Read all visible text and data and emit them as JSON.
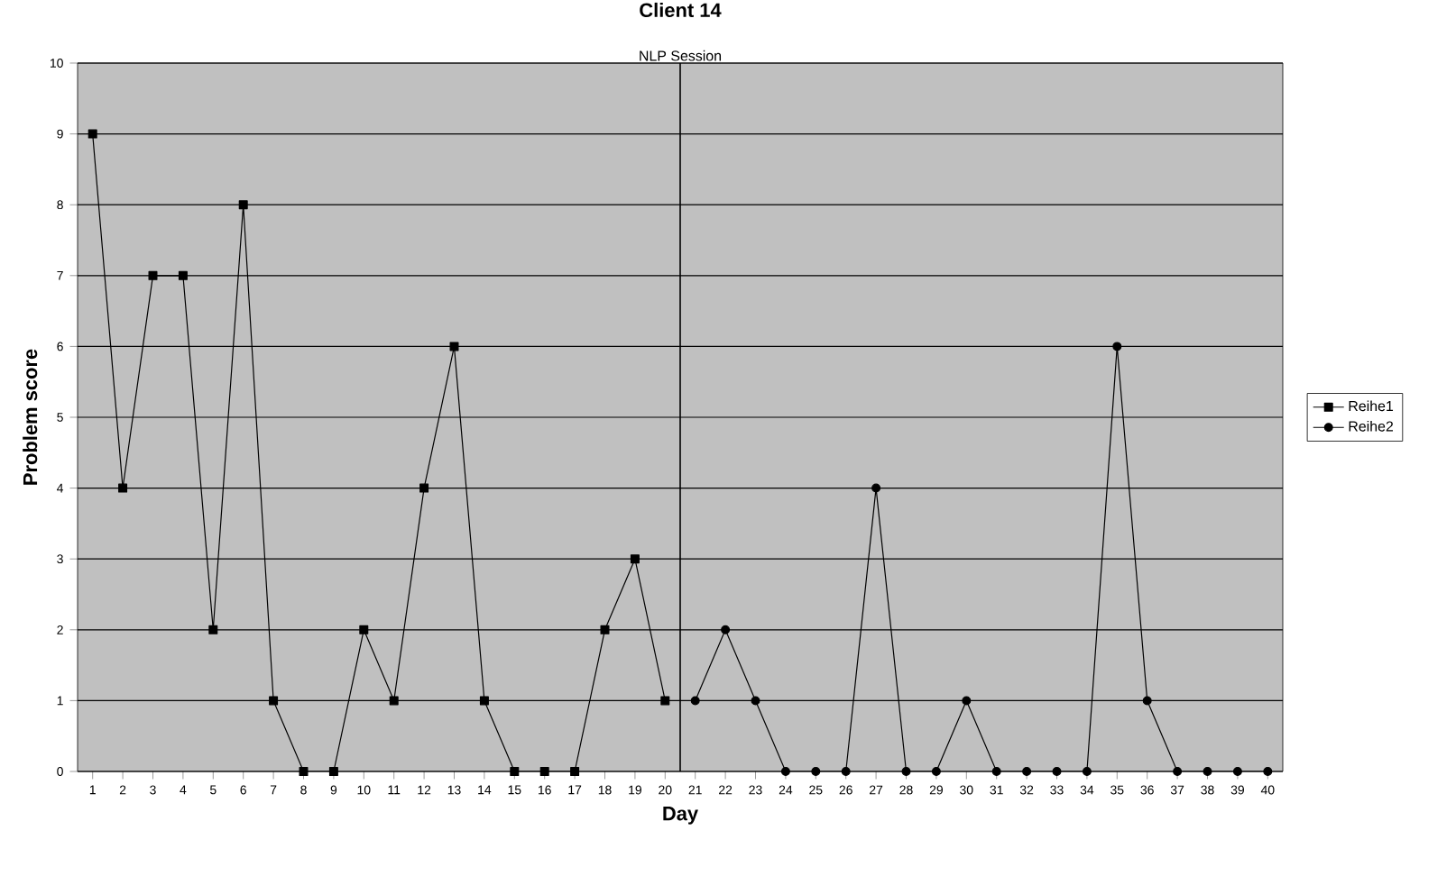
{
  "chart_data": {
    "type": "line",
    "title": "Client 14",
    "xlabel": "Day",
    "ylabel": "Problem score",
    "xlim": [
      0.5,
      40.5
    ],
    "xticks": [
      1,
      2,
      3,
      4,
      5,
      6,
      7,
      8,
      9,
      10,
      11,
      12,
      13,
      14,
      15,
      16,
      17,
      18,
      19,
      20,
      21,
      22,
      23,
      24,
      25,
      26,
      27,
      28,
      29,
      30,
      31,
      32,
      33,
      34,
      35,
      36,
      37,
      38,
      39,
      40
    ],
    "ylim": [
      0,
      10
    ],
    "yticks": [
      0,
      1,
      2,
      3,
      4,
      5,
      6,
      7,
      8,
      9,
      10
    ],
    "grid": "y",
    "legend": "right",
    "series": [
      {
        "name": "Reihe1",
        "color": "#000000",
        "marker": "square",
        "x": [
          1,
          2,
          3,
          4,
          5,
          6,
          7,
          8,
          9,
          10,
          11,
          12,
          13,
          14,
          15,
          16,
          17,
          18,
          19,
          20
        ],
        "values": [
          9,
          4,
          7,
          7,
          2,
          8,
          1,
          0,
          0,
          2,
          1,
          4,
          6,
          1,
          0,
          0,
          0,
          2,
          3,
          1
        ]
      },
      {
        "name": "Reihe2",
        "color": "#000000",
        "marker": "circle",
        "x": [
          21,
          22,
          23,
          24,
          25,
          26,
          27,
          28,
          29,
          30,
          31,
          32,
          33,
          34,
          35,
          36,
          37,
          38,
          39,
          40
        ],
        "values": [
          1,
          2,
          1,
          0,
          0,
          0,
          4,
          0,
          0,
          1,
          0,
          0,
          0,
          0,
          6,
          1,
          0,
          0,
          0,
          0
        ]
      }
    ],
    "ref_lines": [
      {
        "axis": "x",
        "value": 20.5,
        "label": "NLP Session",
        "color": "#000000"
      }
    ]
  }
}
